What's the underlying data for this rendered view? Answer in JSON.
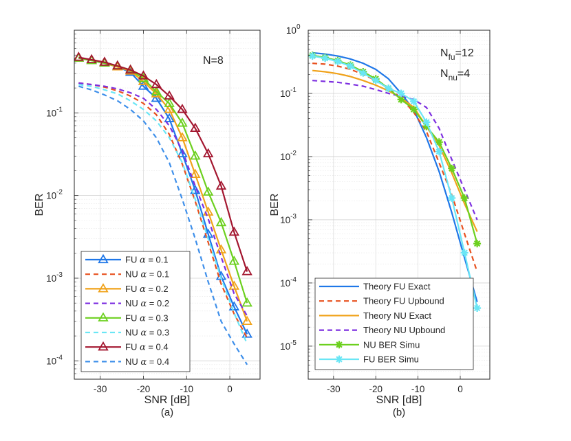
{
  "colors": {
    "fu_blue": "#1f77e8",
    "nu_orange": "#e8501e",
    "yellow": "#f0a21a",
    "purple": "#7d2fe0",
    "green": "#6cd01e",
    "cyan": "#6ae6f5",
    "darkred": "#a3162f",
    "lightblue": "#3e8fea"
  },
  "chart_data": [
    {
      "type": "line",
      "id": "a",
      "subtitle": "(a)",
      "xlabel": "SNR [dB]",
      "ylabel": "BER",
      "yscale": "log",
      "xlim": [
        -36,
        7
      ],
      "ylim": [
        6e-05,
        1
      ],
      "xticks": [
        -30,
        -20,
        -10,
        0
      ],
      "xtick_labels": [
        "-30",
        "-20",
        "-10",
        "0"
      ],
      "yticks": [
        0.0001,
        0.001,
        0.01,
        0.1
      ],
      "ytick_labels": [
        {
          "base": "10",
          "exp": "-4"
        },
        {
          "base": "10",
          "exp": "-3"
        },
        {
          "base": "10",
          "exp": "-2"
        },
        {
          "base": "10",
          "exp": "-1"
        }
      ],
      "grid": true,
      "annotation": "N=8",
      "legend": {
        "placement": "bottom-left",
        "entries": [
          {
            "prefix": "FU ",
            "alpha": "α",
            "suffix": " = 0.1"
          },
          {
            "prefix": "NU ",
            "alpha": "α",
            "suffix": " = 0.1"
          },
          {
            "prefix": "FU ",
            "alpha": "α",
            "suffix": " = 0.2"
          },
          {
            "prefix": "NU ",
            "alpha": "α",
            "suffix": " = 0.2"
          },
          {
            "prefix": "FU ",
            "alpha": "α",
            "suffix": " = 0.3"
          },
          {
            "prefix": "NU ",
            "alpha": "α",
            "suffix": " = 0.3"
          },
          {
            "prefix": "FU ",
            "alpha": "α",
            "suffix": " = 0.4"
          },
          {
            "prefix": "NU ",
            "alpha": "α",
            "suffix": " = 0.4"
          }
        ]
      },
      "series": [
        {
          "name": "FU α = 0.1",
          "color": "#1f77e8",
          "dash": "solid",
          "marker": "triangle",
          "x": [
            -35,
            -32,
            -29,
            -26,
            -23,
            -20,
            -17,
            -14,
            -11,
            -8,
            -5,
            -2,
            1,
            4
          ],
          "y": [
            0.46,
            0.43,
            0.4,
            0.36,
            0.31,
            0.21,
            0.15,
            0.085,
            0.032,
            0.0115,
            0.0034,
            0.00105,
            0.00045,
            0.00021
          ]
        },
        {
          "name": "NU α = 0.1",
          "color": "#e8501e",
          "dash": "dash",
          "marker": "none",
          "x": [
            -35,
            -32,
            -29,
            -26,
            -23,
            -20,
            -17,
            -14,
            -11,
            -8,
            -5,
            -2,
            1,
            4
          ],
          "y": [
            0.23,
            0.22,
            0.205,
            0.185,
            0.16,
            0.13,
            0.095,
            0.055,
            0.024,
            0.0085,
            0.0027,
            0.00085,
            0.00037,
            0.00019
          ]
        },
        {
          "name": "FU α = 0.2",
          "color": "#f0a21a",
          "dash": "solid",
          "marker": "triangle",
          "x": [
            -35,
            -32,
            -29,
            -26,
            -23,
            -20,
            -17,
            -14,
            -11,
            -8,
            -5,
            -2,
            1,
            4
          ],
          "y": [
            0.46,
            0.43,
            0.4,
            0.36,
            0.32,
            0.24,
            0.17,
            0.11,
            0.05,
            0.018,
            0.0063,
            0.0022,
            0.0008,
            0.0003
          ]
        },
        {
          "name": "NU α = 0.2",
          "color": "#7d2fe0",
          "dash": "dash",
          "marker": "none",
          "x": [
            -35,
            -32,
            -29,
            -26,
            -23,
            -20,
            -17,
            -14,
            -11,
            -8,
            -5,
            -2,
            1,
            4
          ],
          "y": [
            0.23,
            0.22,
            0.21,
            0.195,
            0.175,
            0.15,
            0.11,
            0.07,
            0.035,
            0.013,
            0.0052,
            0.0018,
            0.00065,
            0.00035
          ]
        },
        {
          "name": "FU α = 0.3",
          "color": "#6cd01e",
          "dash": "solid",
          "marker": "triangle",
          "x": [
            -35,
            -32,
            -29,
            -26,
            -23,
            -20,
            -17,
            -14,
            -11,
            -8,
            -5,
            -2,
            1,
            4
          ],
          "y": [
            0.46,
            0.43,
            0.4,
            0.37,
            0.33,
            0.26,
            0.18,
            0.13,
            0.075,
            0.03,
            0.011,
            0.0047,
            0.0016,
            0.0005
          ]
        },
        {
          "name": "NU α = 0.3",
          "color": "#6ae6f5",
          "dash": "dash",
          "marker": "none",
          "x": [
            -35,
            -32,
            -29,
            -26,
            -23,
            -20,
            -17,
            -14,
            -11,
            -8,
            -5,
            -2,
            1,
            4
          ],
          "y": [
            0.22,
            0.21,
            0.19,
            0.17,
            0.14,
            0.11,
            0.08,
            0.05,
            0.025,
            0.009,
            0.003,
            0.001,
            0.00038,
            0.00016
          ]
        },
        {
          "name": "FU α = 0.4",
          "color": "#a3162f",
          "dash": "solid",
          "marker": "triangle",
          "x": [
            -35,
            -32,
            -29,
            -26,
            -23,
            -20,
            -17,
            -14,
            -11,
            -8,
            -5,
            -2,
            1,
            4
          ],
          "y": [
            0.47,
            0.44,
            0.41,
            0.37,
            0.33,
            0.28,
            0.22,
            0.16,
            0.11,
            0.065,
            0.032,
            0.013,
            0.0036,
            0.0012
          ]
        },
        {
          "name": "NU α = 0.4",
          "color": "#3e8fea",
          "dash": "dash",
          "marker": "none",
          "x": [
            -35,
            -32,
            -29,
            -26,
            -23,
            -20,
            -17,
            -14,
            -11,
            -8,
            -5,
            -2,
            1,
            4
          ],
          "y": [
            0.21,
            0.19,
            0.165,
            0.14,
            0.11,
            0.08,
            0.05,
            0.025,
            0.009,
            0.003,
            0.0009,
            0.0003,
            0.00016,
            9e-05
          ]
        }
      ]
    },
    {
      "type": "line",
      "id": "b",
      "subtitle": "(b)",
      "xlabel": "SNR [dB]",
      "ylabel": "BER",
      "yscale": "log",
      "xlim": [
        -36,
        7
      ],
      "ylim": [
        3e-06,
        1
      ],
      "xticks": [
        -30,
        -20,
        -10,
        0
      ],
      "xtick_labels": [
        "-30",
        "-20",
        "-10",
        "0"
      ],
      "yticks": [
        1e-05,
        0.0001,
        0.001,
        0.01,
        0.1,
        1
      ],
      "ytick_labels": [
        {
          "base": "10",
          "exp": "-5"
        },
        {
          "base": "10",
          "exp": "-4"
        },
        {
          "base": "10",
          "exp": "-3"
        },
        {
          "base": "10",
          "exp": "-2"
        },
        {
          "base": "10",
          "exp": "-1"
        },
        {
          "base": "10",
          "exp": "0"
        }
      ],
      "grid": true,
      "annotation_lines": [
        {
          "base": "N",
          "sub": "fu",
          "rest": "=12"
        },
        {
          "base": "N",
          "sub": "nu",
          "rest": "=4"
        }
      ],
      "legend": {
        "placement": "bottom-left",
        "entries": [
          "Theory FU Exact",
          "Theory FU Upbound",
          "Theory NU Exact",
          "Theory NU Upbound",
          "NU BER Simu",
          "FU BER Simu"
        ]
      },
      "series": [
        {
          "name": "Theory FU Exact",
          "color": "#1f77e8",
          "dash": "solid",
          "marker": "none",
          "x": [
            -35,
            -32,
            -29,
            -26,
            -23,
            -20,
            -17,
            -14,
            -11,
            -8,
            -5,
            -2,
            1,
            4
          ],
          "y": [
            0.44,
            0.42,
            0.39,
            0.35,
            0.3,
            0.24,
            0.17,
            0.1,
            0.055,
            0.02,
            0.0058,
            0.0013,
            0.00025,
            5e-05
          ]
        },
        {
          "name": "Theory FU Upbound",
          "color": "#e8501e",
          "dash": "dash",
          "marker": "none",
          "x": [
            -35,
            -32,
            -29,
            -26,
            -23,
            -20,
            -17,
            -14,
            -11,
            -8,
            -5,
            -2,
            1,
            4
          ],
          "y": [
            0.3,
            0.29,
            0.27,
            0.24,
            0.2,
            0.16,
            0.12,
            0.085,
            0.05,
            0.025,
            0.008,
            0.0025,
            0.0006,
            0.00015
          ]
        },
        {
          "name": "Theory NU Exact",
          "color": "#f0a21a",
          "dash": "solid",
          "marker": "none",
          "x": [
            -35,
            -32,
            -29,
            -26,
            -23,
            -20,
            -17,
            -14,
            -11,
            -8,
            -5,
            -2,
            1,
            4
          ],
          "y": [
            0.23,
            0.22,
            0.205,
            0.185,
            0.16,
            0.135,
            0.11,
            0.085,
            0.06,
            0.03,
            0.015,
            0.0055,
            0.0018,
            0.00065
          ]
        },
        {
          "name": "Theory NU Upbound",
          "color": "#7d2fe0",
          "dash": "dash",
          "marker": "none",
          "x": [
            -35,
            -32,
            -29,
            -26,
            -23,
            -20,
            -17,
            -14,
            -11,
            -8,
            -5,
            -2,
            1,
            4
          ],
          "y": [
            0.16,
            0.155,
            0.15,
            0.14,
            0.13,
            0.115,
            0.1,
            0.09,
            0.08,
            0.06,
            0.028,
            0.009,
            0.003,
            0.001
          ]
        },
        {
          "name": "NU BER Simu",
          "color": "#6cd01e",
          "dash": "solid",
          "marker": "star",
          "x": [
            -35,
            -32,
            -29,
            -26,
            -23,
            -20,
            -17,
            -14,
            -11,
            -8,
            -5,
            -2,
            1,
            4
          ],
          "y": [
            0.4,
            0.37,
            0.33,
            0.28,
            0.22,
            0.17,
            0.12,
            0.08,
            0.056,
            0.03,
            0.017,
            0.0065,
            0.0022,
            0.00042
          ]
        },
        {
          "name": "FU BER Simu",
          "color": "#6ae6f5",
          "dash": "solid",
          "marker": "star",
          "x": [
            -35,
            -32,
            -29,
            -26,
            -23,
            -20,
            -17,
            -14,
            -11,
            -8,
            -5,
            -2,
            1,
            4
          ],
          "y": [
            0.39,
            0.36,
            0.32,
            0.27,
            0.21,
            0.16,
            0.12,
            0.1,
            0.075,
            0.035,
            0.012,
            0.0022,
            0.0003,
            4e-05
          ]
        }
      ]
    }
  ]
}
